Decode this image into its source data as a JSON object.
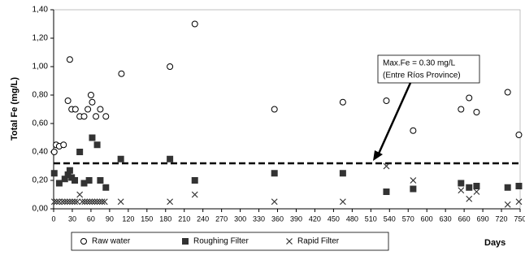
{
  "chart_data": {
    "type": "scatter",
    "y_label": "Total Fe (mg/L)",
    "x_label": "Days",
    "xlim": [
      0,
      750
    ],
    "ylim": [
      0,
      1.4
    ],
    "xticks": [
      0,
      30,
      60,
      90,
      120,
      150,
      180,
      210,
      240,
      270,
      300,
      330,
      360,
      390,
      420,
      450,
      480,
      510,
      540,
      570,
      600,
      630,
      660,
      690,
      720,
      750
    ],
    "yticks": [
      {
        "value": 0,
        "label": "0,00"
      },
      {
        "value": 0.2,
        "label": "0,20"
      },
      {
        "value": 0.4,
        "label": "0,40"
      },
      {
        "value": 0.6,
        "label": "0,60"
      },
      {
        "value": 0.8,
        "label": "0,80"
      },
      {
        "value": 1.0,
        "label": "1,00"
      },
      {
        "value": 1.2,
        "label": "1,20"
      },
      {
        "value": 1.4,
        "label": "1,40"
      }
    ],
    "threshold": 0.32,
    "annotation": [
      "Max.Fe = 0.30 mg/L",
      "(Entre Ríos Province)"
    ],
    "series": [
      {
        "name": "Raw water",
        "marker": "circle",
        "color": "#000000",
        "x": [
          1,
          4,
          9,
          16,
          23,
          26,
          29,
          35,
          42,
          49,
          55,
          60,
          62,
          68,
          75,
          84,
          109,
          187,
          227,
          355,
          465,
          535,
          578,
          655,
          668,
          680,
          730,
          748
        ],
        "values": [
          0.4,
          0.45,
          0.44,
          0.45,
          0.76,
          1.05,
          0.7,
          0.7,
          0.65,
          0.65,
          0.7,
          0.8,
          0.75,
          0.65,
          0.7,
          0.65,
          0.95,
          1.0,
          1.3,
          0.7,
          0.75,
          0.76,
          0.55,
          0.7,
          0.78,
          0.68,
          0.82,
          0.52
        ]
      },
      {
        "name": "Roughing Filter",
        "marker": "square",
        "color": "#333333",
        "x": [
          1,
          9,
          18,
          23,
          26,
          29,
          34,
          42,
          49,
          57,
          62,
          70,
          75,
          84,
          108,
          187,
          227,
          355,
          465,
          535,
          578,
          655,
          668,
          680,
          730,
          748
        ],
        "values": [
          0.25,
          0.18,
          0.21,
          0.24,
          0.27,
          0.22,
          0.2,
          0.4,
          0.18,
          0.2,
          0.5,
          0.45,
          0.2,
          0.15,
          0.35,
          0.35,
          0.2,
          0.25,
          0.25,
          0.12,
          0.14,
          0.18,
          0.15,
          0.16,
          0.15,
          0.16
        ]
      },
      {
        "name": "Rapid Filter",
        "marker": "x",
        "color": "#333333",
        "x": [
          1,
          5,
          9,
          14,
          18,
          22,
          26,
          30,
          34,
          38,
          42,
          46,
          50,
          54,
          58,
          62,
          66,
          70,
          74,
          78,
          82,
          108,
          187,
          227,
          355,
          465,
          535,
          578,
          655,
          668,
          680,
          730,
          748
        ],
        "values": [
          0.05,
          0.05,
          0.05,
          0.05,
          0.05,
          0.05,
          0.05,
          0.05,
          0.05,
          0.05,
          0.1,
          0.05,
          0.05,
          0.05,
          0.05,
          0.05,
          0.05,
          0.05,
          0.05,
          0.05,
          0.05,
          0.05,
          0.05,
          0.1,
          0.05,
          0.05,
          0.3,
          0.2,
          0.13,
          0.07,
          0.12,
          0.03,
          0.05
        ]
      }
    ]
  }
}
